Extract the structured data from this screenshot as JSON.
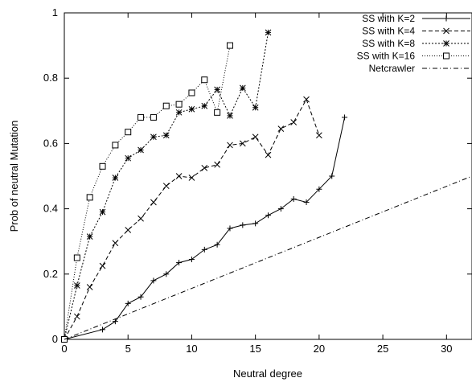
{
  "chart_data": {
    "type": "line",
    "title": "",
    "xlabel": "Neutral degree",
    "ylabel": "Prob of neutral Mutation",
    "xlim": [
      0,
      32
    ],
    "ylim": [
      0,
      1
    ],
    "xticks": [
      "0",
      "5",
      "10",
      "15",
      "20",
      "25",
      "30"
    ],
    "yticks": [
      "0",
      "0.2",
      "0.4",
      "0.6",
      "0.8",
      "1"
    ],
    "legend_position": "top-right",
    "series": [
      {
        "name": "SS with K=2",
        "marker": "plus",
        "dash": "solid",
        "x": [
          0,
          3,
          4,
          5,
          6,
          7,
          8,
          9,
          10,
          11,
          12,
          13,
          14,
          15,
          16,
          17,
          18,
          19,
          20,
          21,
          22
        ],
        "y": [
          0.0,
          0.03,
          0.055,
          0.11,
          0.13,
          0.18,
          0.2,
          0.235,
          0.245,
          0.275,
          0.29,
          0.34,
          0.35,
          0.355,
          0.38,
          0.4,
          0.43,
          0.42,
          0.46,
          0.5,
          0.68
        ]
      },
      {
        "name": "SS with K=4",
        "marker": "x",
        "dash": "dashed",
        "x": [
          0,
          1,
          2,
          3,
          4,
          5,
          6,
          7,
          8,
          9,
          10,
          11,
          12,
          13,
          14,
          15,
          16,
          17,
          18,
          19,
          20
        ],
        "y": [
          0.0,
          0.07,
          0.16,
          0.225,
          0.295,
          0.335,
          0.37,
          0.42,
          0.47,
          0.5,
          0.495,
          0.525,
          0.535,
          0.595,
          0.6,
          0.62,
          0.565,
          0.645,
          0.665,
          0.735,
          0.625
        ]
      },
      {
        "name": "SS with K=8",
        "marker": "star",
        "dash": "dotted",
        "x": [
          0,
          1,
          2,
          3,
          4,
          5,
          6,
          7,
          8,
          9,
          10,
          11,
          12,
          13,
          14,
          15,
          16
        ],
        "y": [
          0.0,
          0.165,
          0.315,
          0.39,
          0.495,
          0.555,
          0.58,
          0.62,
          0.625,
          0.695,
          0.705,
          0.715,
          0.765,
          0.685,
          0.77,
          0.71,
          0.94
        ]
      },
      {
        "name": "SS with K=16",
        "marker": "square",
        "dash": "dense-dotted",
        "x": [
          0,
          1,
          2,
          3,
          4,
          5,
          6,
          7,
          8,
          9,
          10,
          11,
          12,
          13
        ],
        "y": [
          0.0,
          0.25,
          0.435,
          0.53,
          0.595,
          0.635,
          0.68,
          0.68,
          0.715,
          0.72,
          0.755,
          0.795,
          0.695,
          0.9
        ]
      },
      {
        "name": "Netcrawler",
        "marker": "none",
        "dash": "dash-dot",
        "x": [
          0,
          32
        ],
        "y": [
          0.0,
          0.5
        ]
      }
    ]
  }
}
